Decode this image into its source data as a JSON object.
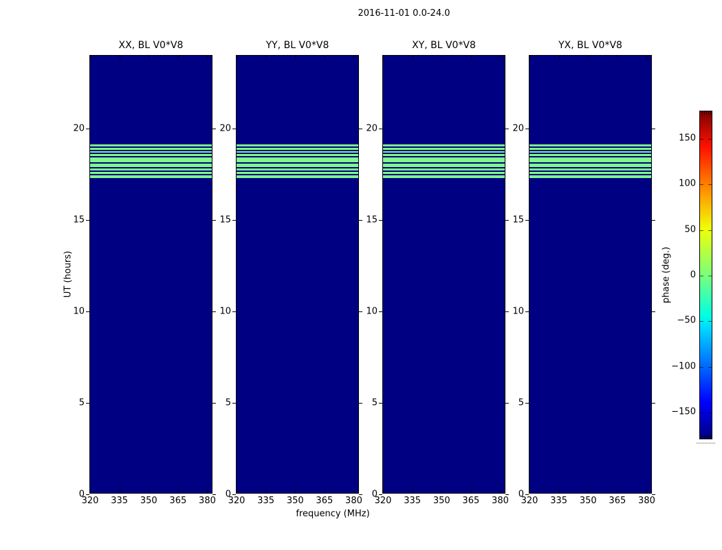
{
  "figure": {
    "title": "2016-11-01 0.0-24.0"
  },
  "chart_data": {
    "type": "heatmap",
    "title": "2016-11-01 0.0-24.0",
    "xlabel": "frequency (MHz)",
    "ylabel": "UT (hours)",
    "x_range_mhz": [
      320,
      383
    ],
    "y_range_hours": [
      0,
      24
    ],
    "x_ticks": [
      320,
      335,
      350,
      365,
      380
    ],
    "y_ticks": [
      0,
      5,
      10,
      15,
      20
    ],
    "panels": [
      {
        "title": "XX, BL V0*V8"
      },
      {
        "title": "YY, BL V0*V8"
      },
      {
        "title": "XY, BL V0*V8"
      },
      {
        "title": "YX, BL V0*V8"
      }
    ],
    "background_phase_deg": -180,
    "stripe_phase_deg": 0,
    "stripes_ut_hours": [
      {
        "from": 19.03,
        "to": 19.14
      },
      {
        "from": 18.86,
        "to": 18.96
      },
      {
        "from": 18.68,
        "to": 18.77
      },
      {
        "from": 18.51,
        "to": 18.61
      },
      {
        "from": 18.18,
        "to": 18.43
      },
      {
        "from": 17.9,
        "to": 18.08
      },
      {
        "from": 17.73,
        "to": 17.82
      },
      {
        "from": 17.53,
        "to": 17.64
      },
      {
        "from": 17.29,
        "to": 17.44
      }
    ],
    "colorbar": {
      "label": "phase (deg.)",
      "ticks": [
        150,
        100,
        50,
        0,
        -50,
        -100,
        -150
      ],
      "range_deg": [
        -180,
        180
      ],
      "colormap": "jet"
    },
    "colors": {
      "background": "#000082",
      "stripe": "#7ff98a",
      "jet_gradient_bottom_to_top": [
        "#000080",
        "#0000ff",
        "#00dbff",
        "#00ffe3",
        "#7bff7b",
        "#efff08",
        "#ff9900",
        "#ff1200",
        "#800000"
      ]
    }
  }
}
